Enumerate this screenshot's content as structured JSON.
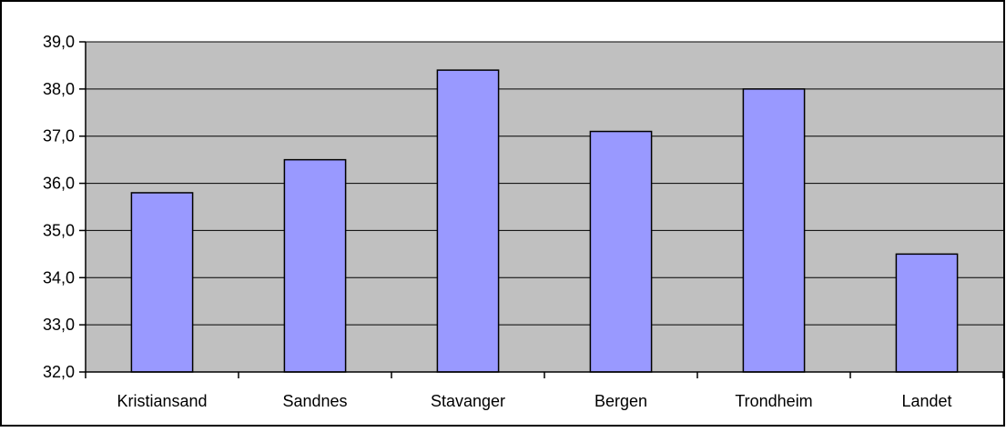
{
  "chart_data": {
    "type": "bar",
    "title": "",
    "xlabel": "",
    "ylabel": "",
    "categories": [
      "Kristiansand",
      "Sandnes",
      "Stavanger",
      "Bergen",
      "Trondheim",
      "Landet"
    ],
    "values": [
      35.8,
      36.5,
      38.4,
      37.1,
      38.0,
      34.5
    ],
    "ylim": [
      32.0,
      39.0
    ],
    "yticks": [
      "32,0",
      "33,0",
      "34,0",
      "35,0",
      "36,0",
      "37,0",
      "38,0",
      "39,0"
    ],
    "grid": true,
    "legend": "none",
    "colors": {
      "bar_fill": "#9999ff",
      "bar_stroke": "#000000",
      "plot_background": "#c0c0c0",
      "gridline": "#000000",
      "frame": "#000000",
      "background": "#ffffff"
    }
  }
}
